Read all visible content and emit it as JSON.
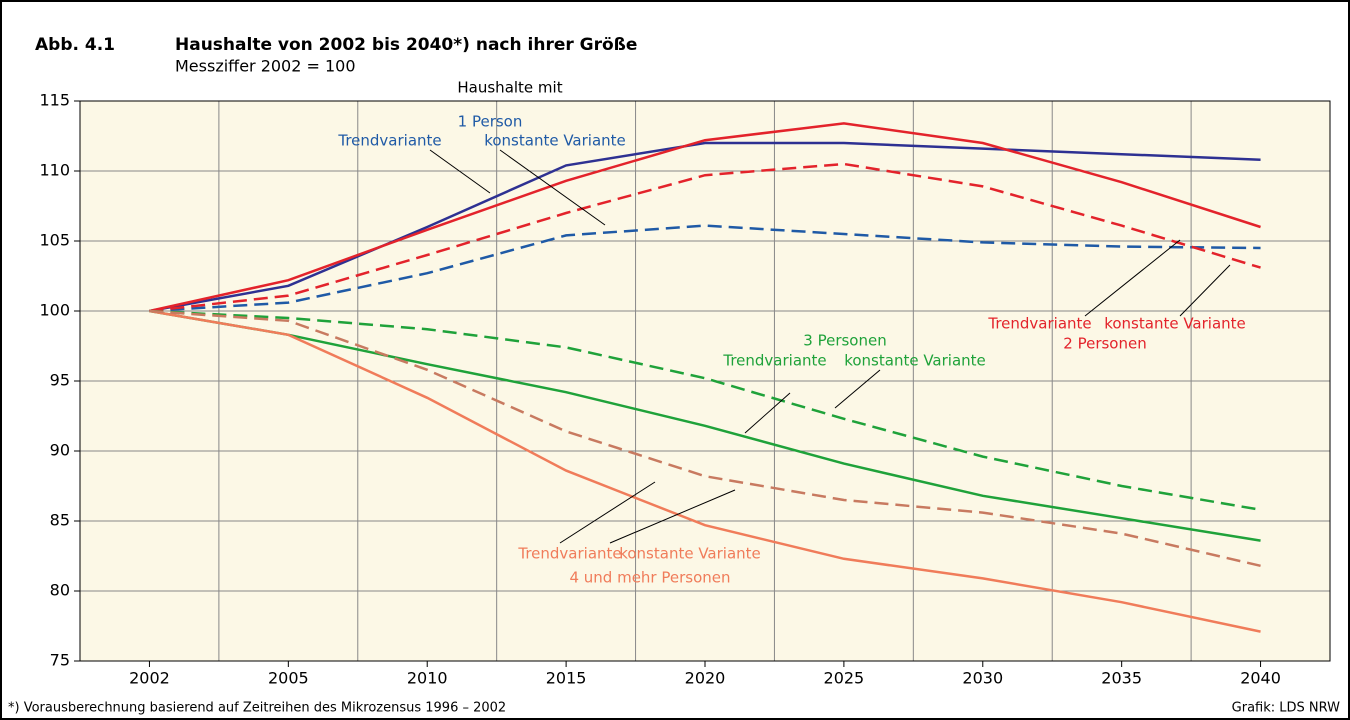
{
  "chart_data": {
    "type": "line",
    "label": "Abb. 4.1",
    "title": "Haushalte von 2002 bis 2040*) nach ihrer Größe",
    "subtitle": "Messziffer 2002 = 100",
    "footnote": "*) Vorausberechnung basierend auf Zeitreihen des Mikrozensus 1996 – 2002",
    "source": "Grafik: LDS NRW",
    "categories": [
      "2002",
      "2005",
      "2010",
      "2015",
      "2020",
      "2025",
      "2030",
      "2035",
      "2040"
    ],
    "ylim": [
      75,
      115
    ],
    "yticks": [
      75,
      80,
      85,
      90,
      95,
      100,
      105,
      110,
      115
    ],
    "grid": true,
    "series": [
      {
        "color": "#2e3192",
        "dash": false,
        "values": [
          100,
          101.8,
          106,
          110.4,
          112,
          112,
          111.6,
          111.2,
          110.8
        ]
      },
      {
        "color": "#1f5aa6",
        "dash": true,
        "values": [
          100,
          100.6,
          102.7,
          105.4,
          106.1,
          105.5,
          104.9,
          104.6,
          104.5
        ]
      },
      {
        "color": "#e3232b",
        "dash": false,
        "values": [
          100,
          102.2,
          105.8,
          109.3,
          112.2,
          113.4,
          112,
          109.2,
          106
        ]
      },
      {
        "color": "#e3232b",
        "dash": true,
        "values": [
          100,
          101.1,
          104,
          107,
          109.7,
          110.5,
          108.9,
          106.1,
          103.1
        ]
      },
      {
        "color": "#1fa23a",
        "dash": false,
        "values": [
          100,
          98.3,
          96.2,
          94.2,
          91.8,
          89.1,
          86.8,
          85.2,
          83.6
        ]
      },
      {
        "color": "#1fa23a",
        "dash": true,
        "values": [
          100,
          99.5,
          98.7,
          97.4,
          95.2,
          92.3,
          89.6,
          87.5,
          85.8
        ]
      },
      {
        "color": "#f07c5a",
        "dash": false,
        "values": [
          100,
          98.3,
          93.8,
          88.6,
          84.7,
          82.3,
          80.9,
          79.2,
          77.1
        ]
      },
      {
        "color": "#c87a60",
        "dash": true,
        "values": [
          100,
          99.3,
          95.8,
          91.4,
          88.2,
          86.5,
          85.6,
          84.1,
          81.8
        ]
      }
    ],
    "annotations": [
      {
        "text": "Haushalte mit",
        "color": "#000000"
      },
      {
        "text": "1 Person",
        "color": "#1f5aa6"
      },
      {
        "text": "Trendvariante",
        "color": "#1f5aa6"
      },
      {
        "text": "konstante Variante",
        "color": "#1f5aa6"
      },
      {
        "text": "3 Personen",
        "color": "#1fa23a"
      },
      {
        "text": "Trendvariante",
        "color": "#1fa23a"
      },
      {
        "text": "konstante Variante",
        "color": "#1fa23a"
      },
      {
        "text": "Trendvariante",
        "color": "#e3232b"
      },
      {
        "text": "konstante Variante",
        "color": "#e3232b"
      },
      {
        "text": "2 Personen",
        "color": "#e3232b"
      },
      {
        "text": "Trendvariante",
        "color": "#f07c5a"
      },
      {
        "text": "konstante Variante",
        "color": "#f07c5a"
      },
      {
        "text": "4 und mehr Personen",
        "color": "#f07c5a"
      }
    ]
  }
}
